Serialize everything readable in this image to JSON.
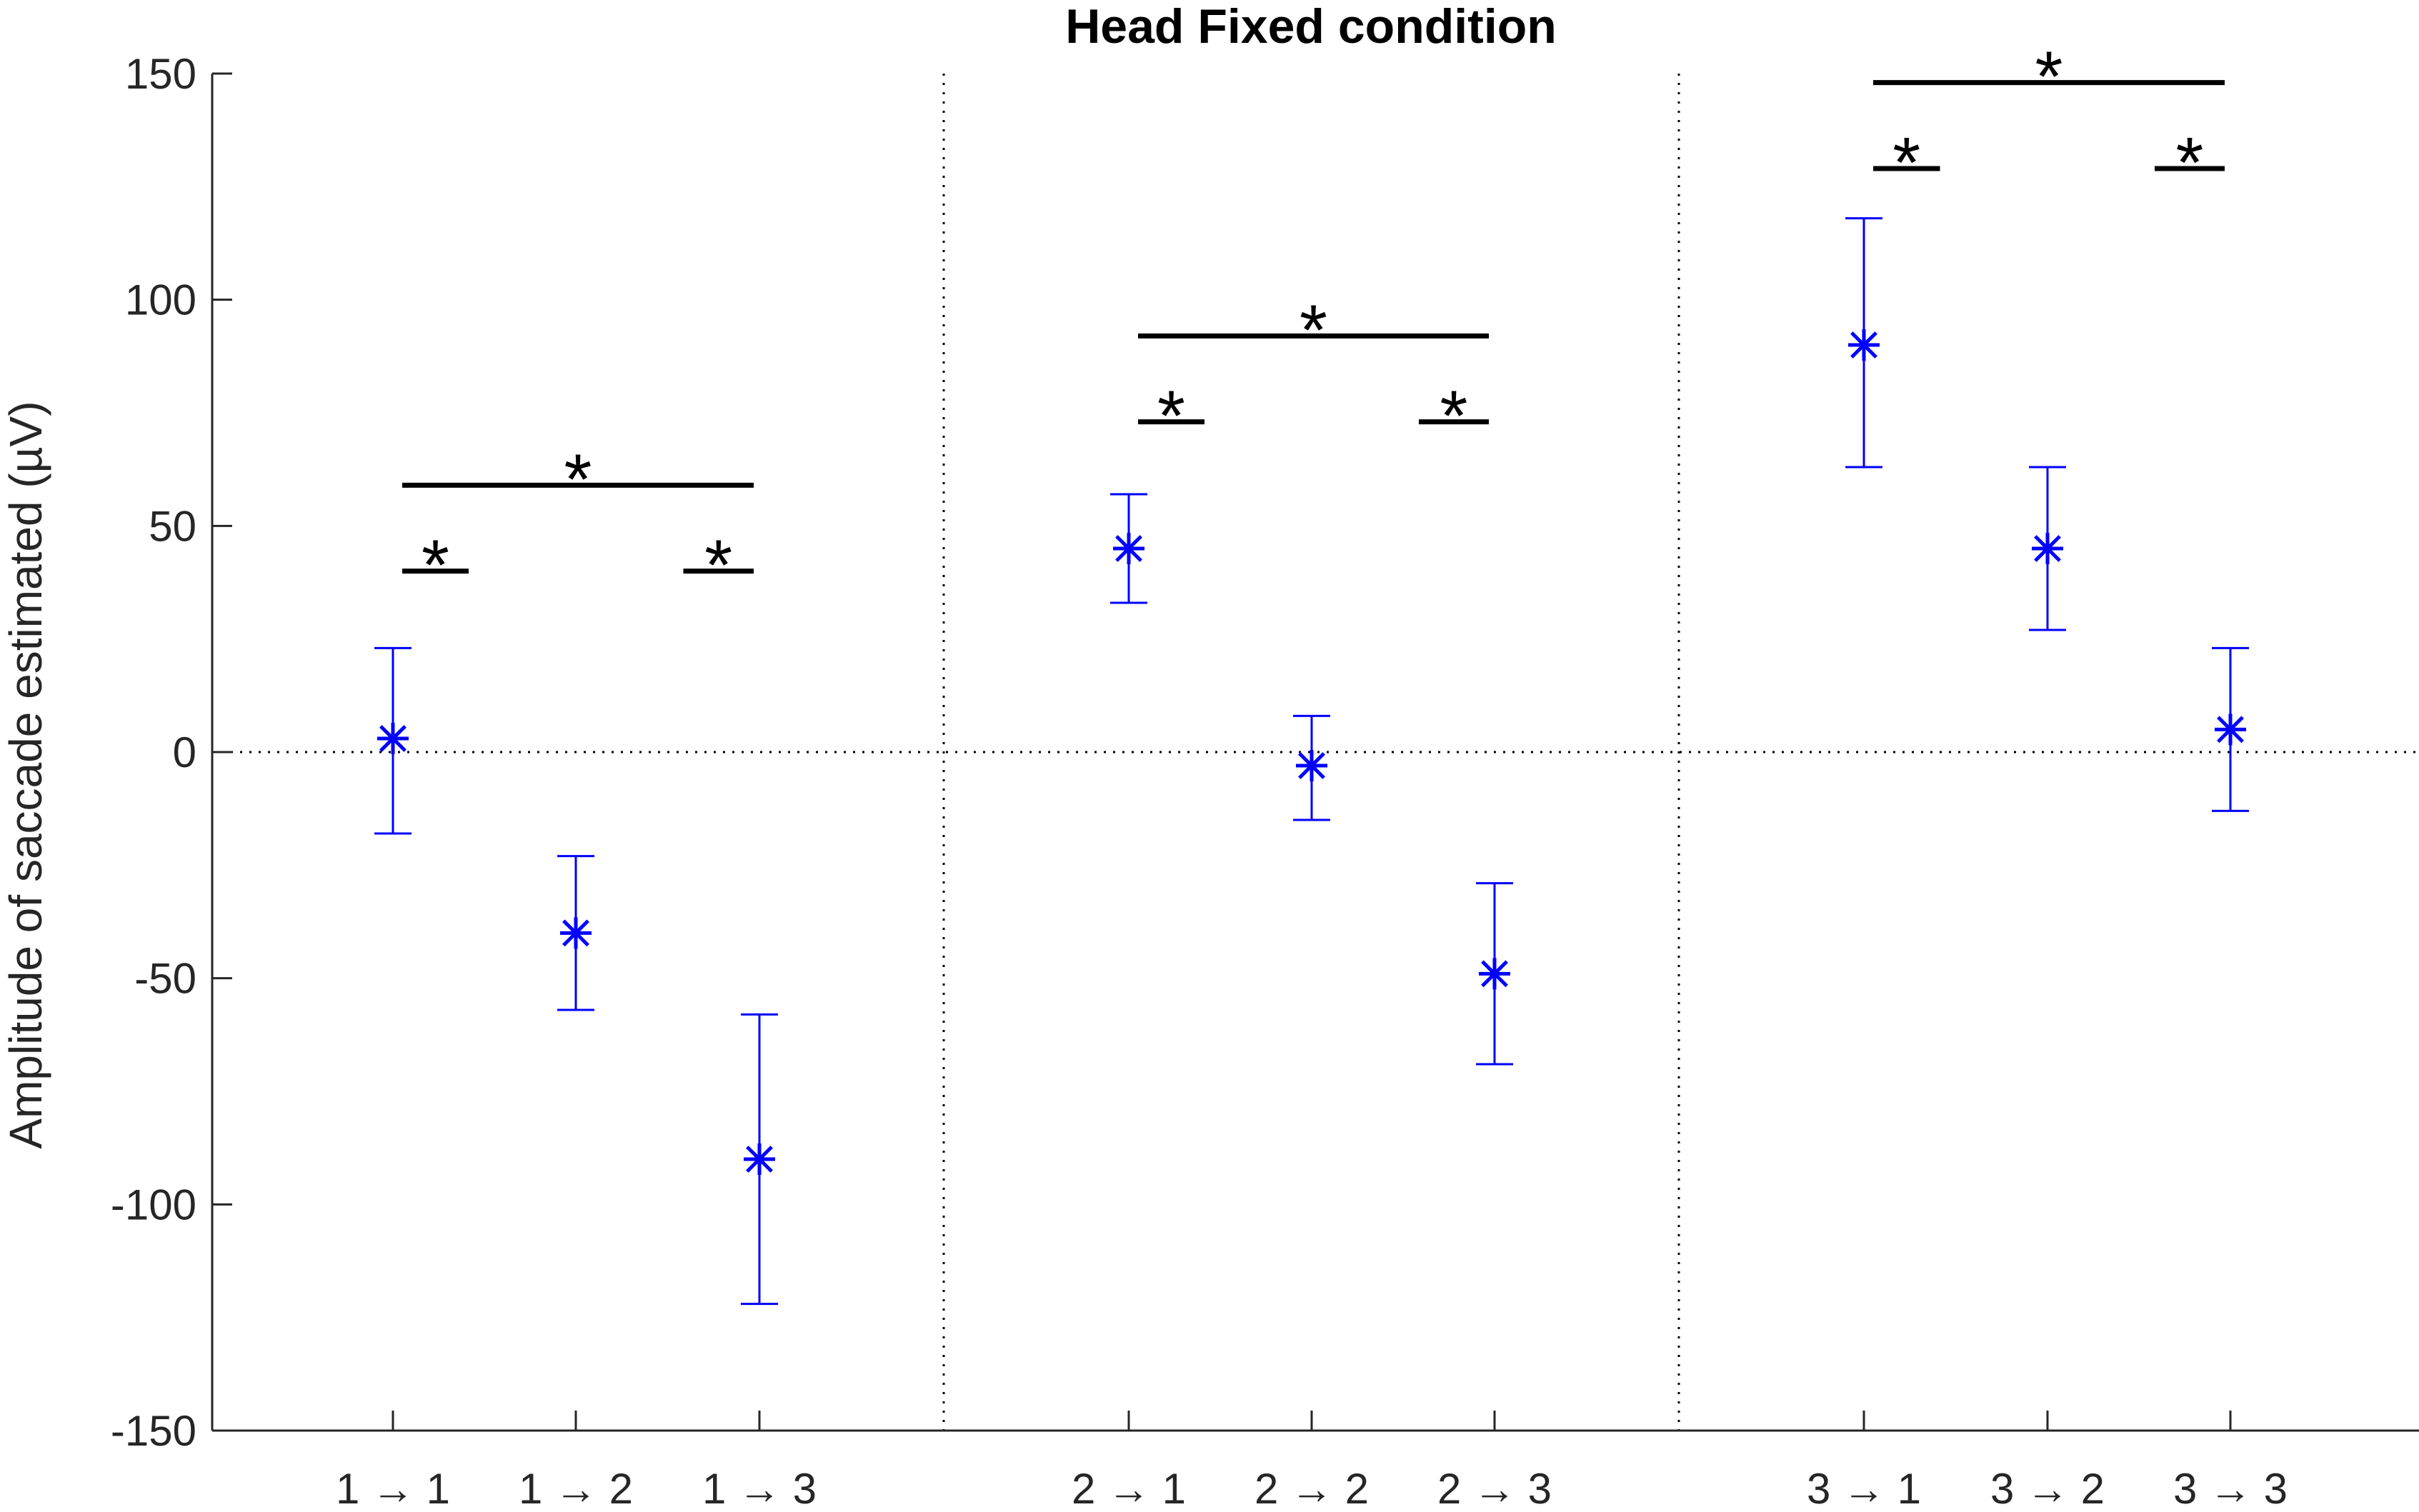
{
  "chart_data": {
    "type": "scatter",
    "title": "Head Fixed condition",
    "xlabel": "",
    "ylabel": "Amplitude of saccade estimated (µV)",
    "ylim": [
      -150,
      150
    ],
    "yticks": [
      150,
      100,
      50,
      0,
      -50,
      -100,
      -150
    ],
    "ytick_labels": [
      "150",
      "100",
      "50",
      "0",
      "-50",
      "-100",
      "-150"
    ],
    "grid": false,
    "points": [
      {
        "label": "1 → 1",
        "group": 1,
        "mean": 3,
        "lower": -18,
        "upper": 23
      },
      {
        "label": "1 → 2",
        "group": 1,
        "mean": -40,
        "lower": -57,
        "upper": -23
      },
      {
        "label": "1 → 3",
        "group": 1,
        "mean": -90,
        "lower": -122,
        "upper": -58
      },
      {
        "label": "2 → 1",
        "group": 2,
        "mean": 45,
        "lower": 33,
        "upper": 57
      },
      {
        "label": "2 → 2",
        "group": 2,
        "mean": -3,
        "lower": -15,
        "upper": 8
      },
      {
        "label": "2 → 3",
        "group": 2,
        "mean": -49,
        "lower": -69,
        "upper": -29
      },
      {
        "label": "3 → 1",
        "group": 3,
        "mean": 90,
        "lower": 63,
        "upper": 118
      },
      {
        "label": "3 → 2",
        "group": 3,
        "mean": 45,
        "lower": 27,
        "upper": 63
      },
      {
        "label": "3 → 3",
        "group": 3,
        "mean": 5,
        "lower": -13,
        "upper": 23
      }
    ],
    "significance": [
      {
        "from": 0,
        "to": 2,
        "y": 59,
        "label": "*"
      },
      {
        "from": 0,
        "to": 1,
        "y": 40,
        "label": "*"
      },
      {
        "from": 1,
        "to": 2,
        "y": 40,
        "label": "*"
      },
      {
        "from": 3,
        "to": 5,
        "y": 92,
        "label": "*"
      },
      {
        "from": 3,
        "to": 4,
        "y": 73,
        "label": "*"
      },
      {
        "from": 4,
        "to": 5,
        "y": 73,
        "label": "*"
      },
      {
        "from": 6,
        "to": 8,
        "y": 148,
        "label": "*"
      },
      {
        "from": 6,
        "to": 7,
        "y": 129,
        "label": "*"
      },
      {
        "from": 7,
        "to": 8,
        "y": 129,
        "label": "*"
      }
    ],
    "zero_line": 0,
    "group_separators": true,
    "colors": {
      "points": "#0000ff",
      "axis": "#262626",
      "bars": "#000000"
    }
  }
}
